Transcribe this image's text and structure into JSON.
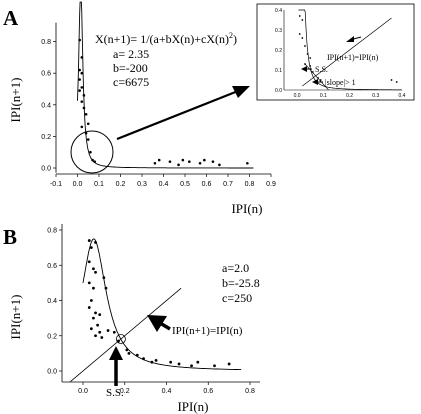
{
  "panels": {
    "A": {
      "letter": "A"
    },
    "B": {
      "letter": "B"
    }
  },
  "chart_data": [
    {
      "type": "scatter",
      "panel": "A",
      "xlabel": "IPI(n)",
      "ylabel": "IPI(n+1)",
      "xlim": [
        -0.1,
        0.9
      ],
      "ylim": [
        0.0,
        1.0
      ],
      "x_ticks": [
        "-0.1",
        "0.0",
        "0.1",
        "0.2",
        "0.3",
        "0.4",
        "0.5",
        "0.6",
        "0.7",
        "0.8",
        "0.9"
      ],
      "y_ticks": [
        "0.0",
        "0.2",
        "0.4",
        "0.6",
        "0.8"
      ],
      "equation": "X(n+1)= 1/(a+bX(n)+cX(n)2)",
      "params": [
        "a= 2.35",
        "b=-200",
        "c=6675"
      ],
      "fit": {
        "a": 2.35,
        "b": -200,
        "c": 6675
      },
      "points": [
        [
          0.01,
          0.81
        ],
        [
          0.02,
          0.7
        ],
        [
          0.01,
          0.62
        ],
        [
          0.02,
          0.6
        ],
        [
          0.01,
          0.56
        ],
        [
          0.02,
          0.51
        ],
        [
          0.01,
          0.49
        ],
        [
          0.03,
          0.46
        ],
        [
          0.02,
          0.42
        ],
        [
          0.03,
          0.38
        ],
        [
          0.04,
          0.34
        ],
        [
          0.05,
          0.28
        ],
        [
          0.02,
          0.26
        ],
        [
          0.04,
          0.22
        ],
        [
          0.05,
          0.18
        ],
        [
          0.06,
          0.1
        ],
        [
          0.07,
          0.05
        ],
        [
          0.08,
          0.04
        ],
        [
          0.36,
          0.03
        ],
        [
          0.38,
          0.05
        ],
        [
          0.43,
          0.04
        ],
        [
          0.47,
          0.02
        ],
        [
          0.49,
          0.05
        ],
        [
          0.52,
          0.04
        ],
        [
          0.57,
          0.03
        ],
        [
          0.59,
          0.05
        ],
        [
          0.63,
          0.04
        ],
        [
          0.66,
          0.02
        ],
        [
          0.79,
          0.03
        ]
      ],
      "inset": {
        "xlim": [
          -0.05,
          0.4
        ],
        "ylim": [
          0.0,
          0.4
        ],
        "x_ticks": [
          "0.0",
          "0.1",
          "0.2",
          "0.3",
          "0.4"
        ],
        "y_ticks": [
          "0.0",
          "0.1",
          "0.2",
          "0.3",
          "0.4"
        ],
        "identity_label": "IPI(n+1)=IPI(n)",
        "ss_label": "S.S.",
        "slope_label": "|slope|> 1",
        "points": [
          [
            0.01,
            0.37
          ],
          [
            0.02,
            0.35
          ],
          [
            0.01,
            0.28
          ],
          [
            0.02,
            0.26
          ],
          [
            0.03,
            0.22
          ],
          [
            0.04,
            0.18
          ],
          [
            0.05,
            0.16
          ],
          [
            0.03,
            0.13
          ],
          [
            0.05,
            0.12
          ],
          [
            0.06,
            0.09
          ],
          [
            0.08,
            0.06
          ],
          [
            0.09,
            0.05
          ],
          [
            0.36,
            0.05
          ],
          [
            0.38,
            0.04
          ]
        ]
      }
    },
    {
      "type": "scatter",
      "panel": "B",
      "xlabel": "IPI(n)",
      "ylabel": "IPI(n+1)",
      "xlim": [
        -0.1,
        0.8
      ],
      "ylim": [
        -0.05,
        0.8
      ],
      "x_ticks": [
        "0.0",
        "0.2",
        "0.4",
        "0.6",
        "0.8"
      ],
      "y_ticks": [
        "0.0",
        "0.2",
        "0.4",
        "0.6",
        "0.8"
      ],
      "params": [
        "a=2.0",
        "b=-25.8",
        "c=250"
      ],
      "fit": {
        "a": 2.0,
        "b": -25.8,
        "c": 250
      },
      "identity_label": "IPI(n+1)=IPI(n)",
      "ss_label": "S.S.",
      "points": [
        [
          0.03,
          0.74
        ],
        [
          0.04,
          0.7
        ],
        [
          0.06,
          0.73
        ],
        [
          0.03,
          0.62
        ],
        [
          0.05,
          0.58
        ],
        [
          0.06,
          0.56
        ],
        [
          0.1,
          0.53
        ],
        [
          0.03,
          0.5
        ],
        [
          0.05,
          0.47
        ],
        [
          0.11,
          0.47
        ],
        [
          0.04,
          0.4
        ],
        [
          0.03,
          0.36
        ],
        [
          0.06,
          0.33
        ],
        [
          0.08,
          0.32
        ],
        [
          0.05,
          0.3
        ],
        [
          0.07,
          0.26
        ],
        [
          0.04,
          0.24
        ],
        [
          0.08,
          0.22
        ],
        [
          0.06,
          0.2
        ],
        [
          0.12,
          0.23
        ],
        [
          0.09,
          0.19
        ],
        [
          0.15,
          0.22
        ],
        [
          0.17,
          0.17
        ],
        [
          0.21,
          0.12
        ],
        [
          0.22,
          0.1
        ],
        [
          0.26,
          0.09
        ],
        [
          0.29,
          0.07
        ],
        [
          0.33,
          0.05
        ],
        [
          0.35,
          0.06
        ],
        [
          0.42,
          0.05
        ],
        [
          0.46,
          0.04
        ],
        [
          0.52,
          0.03
        ],
        [
          0.55,
          0.05
        ],
        [
          0.63,
          0.03
        ],
        [
          0.7,
          0.04
        ]
      ]
    }
  ]
}
